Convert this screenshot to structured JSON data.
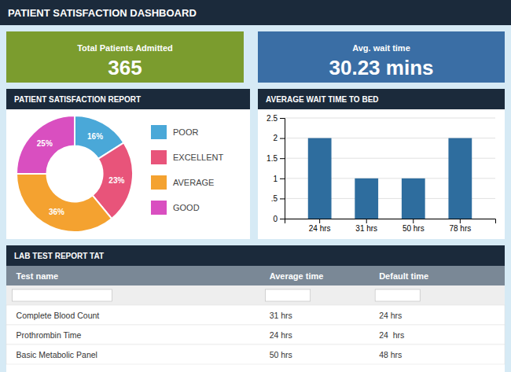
{
  "title": "PATIENT SATISFACTION DASHBOARD",
  "cards": [
    {
      "label": "Total Patients Admitted",
      "value": "365",
      "color": "#7b9c2e"
    },
    {
      "label": "Avg. wait time",
      "value": "30.23 mins",
      "color": "#3a6ea5"
    }
  ],
  "chart_data": [
    {
      "type": "donut",
      "title": "PATIENT SATISFACTION REPORT",
      "categories": [
        "POOR",
        "EXCELLENT",
        "AVERAGE",
        "GOOD"
      ],
      "values": [
        16,
        23,
        36,
        25
      ],
      "value_labels": [
        "16%",
        "23%",
        "36%",
        "25%"
      ],
      "colors": [
        "#4aa8d8",
        "#e8547a",
        "#f4a230",
        "#d94fc0"
      ],
      "data_labels": true,
      "legend": "right"
    },
    {
      "type": "bar",
      "title": "AVERAGE WAIT TIME TO BED",
      "categories": [
        "24 hrs",
        "31 hrs",
        "50 hrs",
        "78 hrs"
      ],
      "values": [
        2,
        1,
        1,
        2
      ],
      "color": "#2e6d9e",
      "ylim": [
        0,
        2.5
      ],
      "yticks": [
        0,
        {
          "value": 0.5,
          "label": ".5"
        },
        1,
        1.5,
        2,
        2.5
      ],
      "grid": true
    }
  ],
  "table": {
    "title": "LAB TEST REPORT TAT",
    "header": [
      "Test name",
      "Average time",
      "Default time"
    ],
    "rows": [
      [
        "Complete Blood Count",
        "31 hrs",
        "24 hrs"
      ],
      [
        "Prothrombin Time",
        "24 hrs",
        "24  hrs"
      ],
      [
        "Basic Metabolic Panel",
        "50 hrs",
        "48 hrs"
      ]
    ]
  }
}
